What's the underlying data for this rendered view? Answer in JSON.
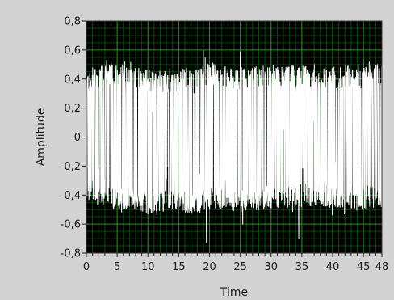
{
  "chart_data": {
    "type": "line",
    "title": "",
    "xlabel": "Time",
    "ylabel": "Amplitude",
    "xlim": [
      0,
      48
    ],
    "ylim": [
      -0.8,
      0.8
    ],
    "x_ticks": [
      0,
      5,
      10,
      15,
      20,
      25,
      30,
      35,
      40,
      45,
      48
    ],
    "x_tick_labels": [
      "0",
      "5",
      "10",
      "15",
      "20",
      "25",
      "30",
      "35",
      "40",
      "45",
      "48"
    ],
    "y_ticks": [
      0.8,
      0.6,
      0.4,
      0.2,
      0,
      -0.2,
      -0.4,
      -0.6,
      -0.8
    ],
    "y_tick_labels": [
      "0,8",
      "0,6",
      "0,4",
      "0,2",
      "0",
      "-0,2",
      "-0,4",
      "-0,6",
      "-0,8"
    ],
    "grid": true,
    "legend": "none",
    "colors": {
      "plot_background": "#000000",
      "grid_major": "#1f8f1f",
      "grid_minor": "#0b4a0b",
      "signal": "#ffffff",
      "panel": "#d3d3d3"
    },
    "series": [
      {
        "color": "#ffffff",
        "x": [
          0,
          2,
          4,
          6,
          8,
          10,
          12,
          14,
          16,
          18,
          20,
          22,
          24,
          26,
          28,
          30,
          32,
          34,
          36,
          38,
          40,
          42,
          44,
          46,
          48
        ],
        "upper": [
          0.47,
          0.49,
          0.52,
          0.5,
          0.48,
          0.47,
          0.46,
          0.45,
          0.48,
          0.5,
          0.52,
          0.51,
          0.49,
          0.48,
          0.49,
          0.5,
          0.48,
          0.5,
          0.49,
          0.48,
          0.49,
          0.5,
          0.49,
          0.5,
          0.5
        ],
        "lower": [
          -0.44,
          -0.48,
          -0.5,
          -0.5,
          -0.51,
          -0.53,
          -0.52,
          -0.5,
          -0.52,
          -0.53,
          -0.51,
          -0.5,
          -0.51,
          -0.52,
          -0.51,
          -0.5,
          -0.49,
          -0.49,
          -0.48,
          -0.48,
          -0.49,
          -0.49,
          -0.5,
          -0.5,
          -0.5
        ]
      }
    ],
    "notable_spikes": [
      {
        "x": 14,
        "y": 0.05
      },
      {
        "x": 32,
        "y": 0.05
      },
      {
        "x": 35,
        "y": 0.08
      },
      {
        "x": 37,
        "y": 0.11
      },
      {
        "x": 47,
        "y": 0.07
      },
      {
        "x": 15.5,
        "y": -0.03
      },
      {
        "x": 19,
        "y": 0.6
      },
      {
        "x": 14,
        "y": 0.05
      },
      {
        "x": 25,
        "y": 0.59
      },
      {
        "x": 34.5,
        "y": -0.7
      },
      {
        "x": 19.5,
        "y": -0.73
      }
    ]
  }
}
